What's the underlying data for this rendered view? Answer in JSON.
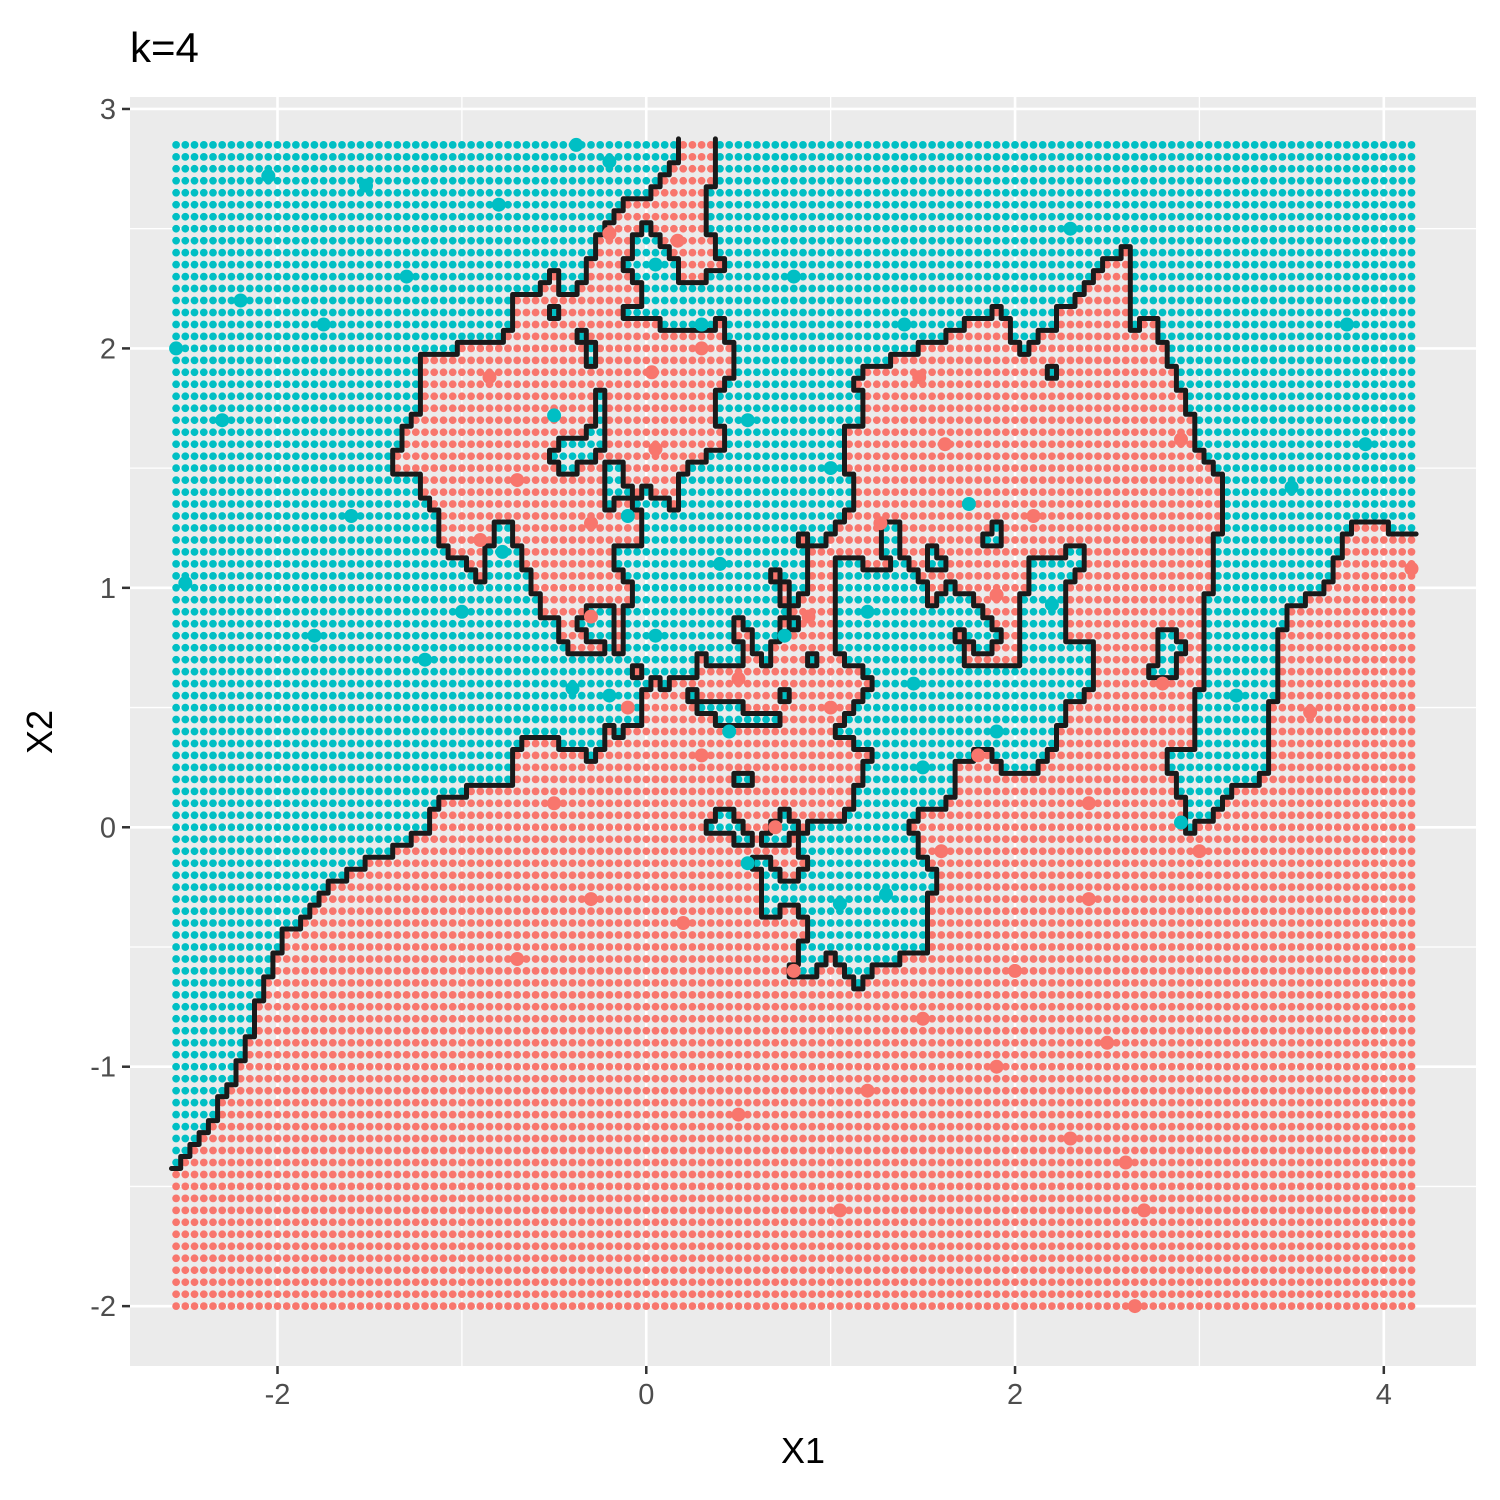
{
  "chart_data": {
    "type": "scatter",
    "title": "k=4",
    "xlabel": "X1",
    "ylabel": "X2",
    "xlim": [
      -2.8,
      4.5
    ],
    "ylim": [
      -2.25,
      3.05
    ],
    "x_ticks": [
      -2,
      0,
      2,
      4
    ],
    "y_ticks": [
      -2,
      -1,
      0,
      1,
      2,
      3
    ],
    "x_tick_labels": [
      "-2",
      "0",
      "2",
      "4"
    ],
    "y_tick_labels": [
      "-2",
      "-1",
      "0",
      "1",
      "2",
      "3"
    ],
    "grid": true,
    "legend": "none",
    "colors": {
      "class_a": "#f8766d",
      "class_b": "#00bfc4",
      "boundary": "#1a1a1a",
      "panel": "#ebebeb",
      "grid": "#ffffff"
    },
    "prediction_grid": {
      "x_range": [
        -2.55,
        4.15
      ],
      "y_range": [
        -2.0,
        2.85
      ],
      "step": 0.05
    },
    "series": [
      {
        "class": "red",
        "points": [
          [
            -0.2,
            2.48
          ],
          [
            0.17,
            2.45
          ],
          [
            0.3,
            2.0
          ],
          [
            0.03,
            1.9
          ],
          [
            -0.85,
            1.88
          ],
          [
            -0.9,
            1.2
          ],
          [
            -0.7,
            1.45
          ],
          [
            0.05,
            1.58
          ],
          [
            -0.3,
            1.27
          ],
          [
            1.27,
            1.27
          ],
          [
            1.62,
            1.6
          ],
          [
            1.48,
            1.88
          ],
          [
            1.9,
            0.97
          ],
          [
            0.88,
            0.88
          ],
          [
            -0.3,
            0.88
          ],
          [
            2.9,
            1.62
          ],
          [
            4.15,
            1.08
          ],
          [
            3.6,
            0.48
          ],
          [
            0.5,
            0.62
          ],
          [
            -0.1,
            0.5
          ],
          [
            0.3,
            0.3
          ],
          [
            1.0,
            0.5
          ],
          [
            -0.5,
            0.1
          ],
          [
            0.7,
            0.0
          ],
          [
            1.6,
            -0.1
          ],
          [
            0.2,
            -0.4
          ],
          [
            -0.3,
            -0.3
          ],
          [
            0.8,
            -0.6
          ],
          [
            1.5,
            -0.8
          ],
          [
            2.4,
            -0.3
          ],
          [
            2.0,
            -0.6
          ],
          [
            2.5,
            -0.9
          ],
          [
            1.2,
            -1.1
          ],
          [
            0.5,
            -1.2
          ],
          [
            2.6,
            -1.4
          ],
          [
            2.7,
            -1.6
          ],
          [
            2.65,
            -2.0
          ],
          [
            1.05,
            -1.6
          ],
          [
            -0.7,
            -0.55
          ],
          [
            1.8,
            0.3
          ],
          [
            2.8,
            0.6
          ],
          [
            2.1,
            1.3
          ],
          [
            2.4,
            0.1
          ],
          [
            3.0,
            -0.1
          ],
          [
            1.9,
            -1.0
          ],
          [
            2.3,
            -1.3
          ]
        ]
      },
      {
        "class": "teal",
        "points": [
          [
            -2.55,
            2.0
          ],
          [
            -2.5,
            1.02
          ],
          [
            -2.05,
            2.72
          ],
          [
            -1.52,
            2.68
          ],
          [
            -1.75,
            2.1
          ],
          [
            -2.2,
            2.2
          ],
          [
            -1.3,
            2.3
          ],
          [
            -0.8,
            2.6
          ],
          [
            -0.38,
            2.85
          ],
          [
            -0.2,
            2.78
          ],
          [
            0.05,
            2.35
          ],
          [
            0.3,
            2.1
          ],
          [
            0.55,
            1.7
          ],
          [
            -0.5,
            1.72
          ],
          [
            -0.78,
            1.15
          ],
          [
            -1.0,
            0.9
          ],
          [
            -1.2,
            0.7
          ],
          [
            -1.6,
            1.3
          ],
          [
            -1.8,
            0.8
          ],
          [
            -2.3,
            1.7
          ],
          [
            -0.4,
            0.58
          ],
          [
            -0.2,
            0.55
          ],
          [
            0.05,
            0.8
          ],
          [
            0.75,
            0.8
          ],
          [
            0.45,
            0.4
          ],
          [
            0.55,
            -0.15
          ],
          [
            1.05,
            -0.32
          ],
          [
            1.3,
            -0.28
          ],
          [
            1.5,
            0.25
          ],
          [
            1.75,
            1.35
          ],
          [
            2.2,
            0.93
          ],
          [
            2.9,
            0.02
          ],
          [
            3.2,
            0.55
          ],
          [
            3.5,
            1.42
          ],
          [
            3.8,
            2.1
          ],
          [
            3.9,
            1.6
          ],
          [
            1.0,
            1.5
          ],
          [
            1.4,
            2.1
          ],
          [
            0.8,
            2.3
          ],
          [
            1.2,
            0.9
          ],
          [
            1.45,
            0.6
          ],
          [
            1.9,
            0.4
          ],
          [
            2.3,
            2.5
          ],
          [
            -0.1,
            1.3
          ],
          [
            0.4,
            1.1
          ]
        ]
      }
    ]
  }
}
